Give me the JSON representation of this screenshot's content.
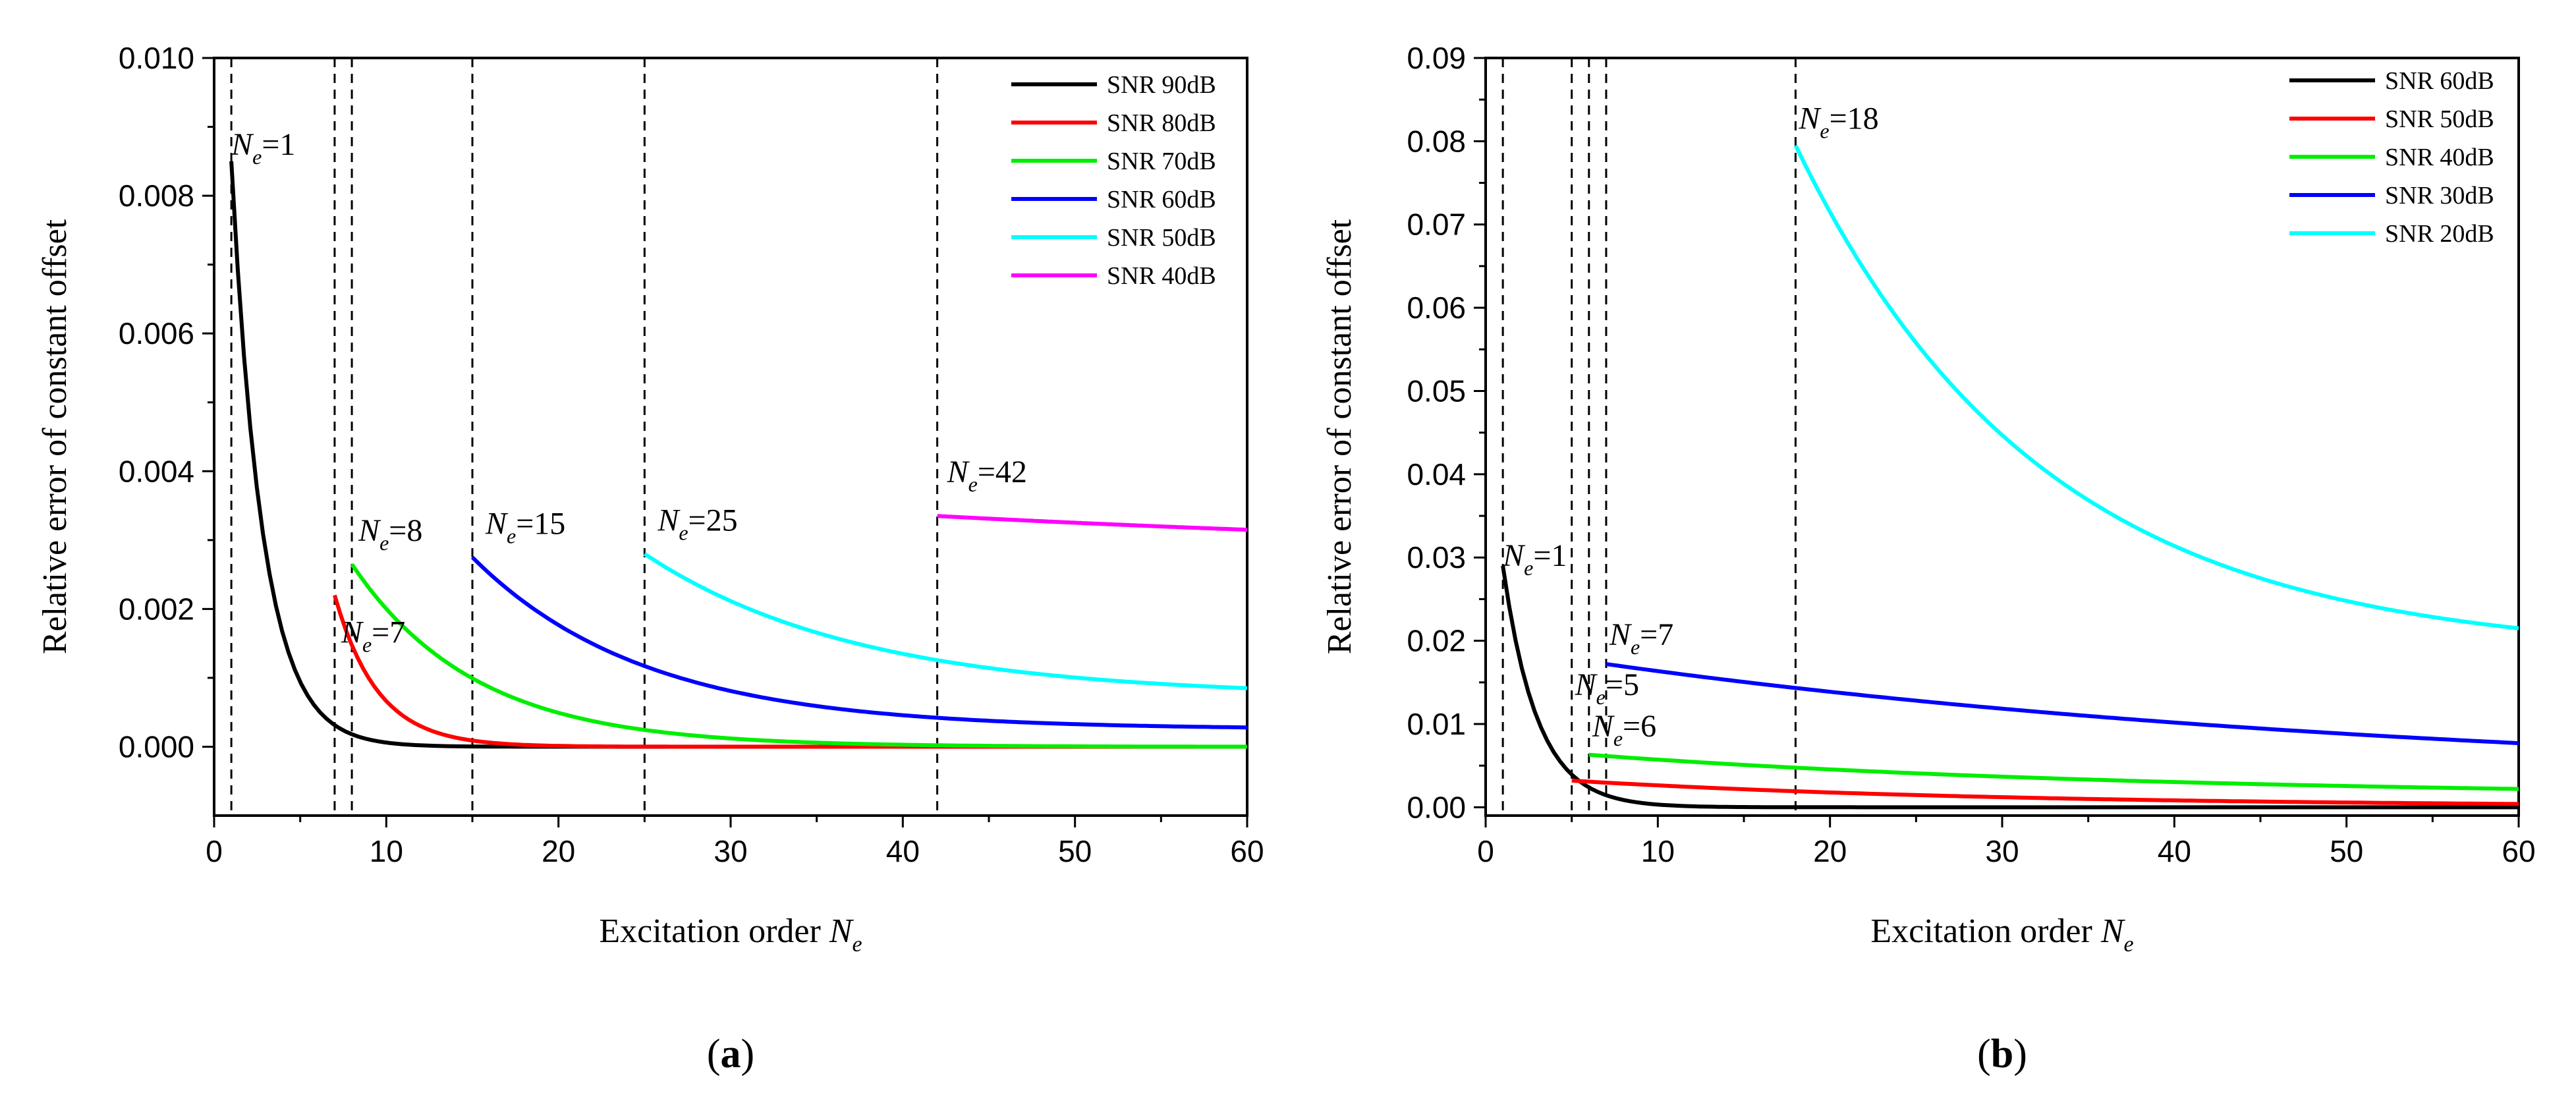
{
  "chart_data": [
    {
      "type": "line",
      "panel_label": "a",
      "xlabel": "Excitation order",
      "xlabel_var": "N",
      "xlabel_sub": "e",
      "ylabel": "Relative error of constant offset",
      "xlim": [
        0,
        60
      ],
      "ylim": [
        -0.001,
        0.01
      ],
      "xticks": [
        0,
        10,
        20,
        30,
        40,
        50,
        60
      ],
      "yticks": [
        0.0,
        0.002,
        0.004,
        0.006,
        0.008,
        0.01
      ],
      "ytick_decimals": 3,
      "legend_position": "top-right",
      "vlines": [
        1,
        7,
        8,
        15,
        25,
        42
      ],
      "series": [
        {
          "name": "SNR 90dB",
          "color": "#000000",
          "start": 1,
          "end": 60,
          "y_start": 0.0085,
          "y_end": 0.0,
          "decay": 0.55
        },
        {
          "name": "SNR 80dB",
          "color": "#ff0000",
          "start": 7,
          "end": 60,
          "y_start": 0.0022,
          "y_end": 0.0,
          "decay": 0.4
        },
        {
          "name": "SNR 70dB",
          "color": "#00ee00",
          "start": 8,
          "end": 60,
          "y_start": 0.00265,
          "y_end": 0.0,
          "decay": 0.14
        },
        {
          "name": "SNR 60dB",
          "color": "#0000ff",
          "start": 15,
          "end": 60,
          "y_start": 0.00275,
          "y_end": 0.00028,
          "decay": 0.1
        },
        {
          "name": "SNR 50dB",
          "color": "#00ffff",
          "start": 25,
          "end": 60,
          "y_start": 0.0028,
          "y_end": 0.00085,
          "decay": 0.08
        },
        {
          "name": "SNR 40dB",
          "color": "#ff00ff",
          "start": 42,
          "end": 60,
          "y_start": 0.00335,
          "y_end": 0.00315,
          "decay": 0.02
        }
      ],
      "annotations": [
        {
          "sym": "N",
          "sub": "e",
          "text": "=1",
          "x": 1,
          "y": 0.0085,
          "dx": 0,
          "dy": -10
        },
        {
          "sym": "N",
          "sub": "e",
          "text": "=7",
          "x": 7,
          "y": 0.0018,
          "dx": 10,
          "dy": 30
        },
        {
          "sym": "N",
          "sub": "e",
          "text": "=8",
          "x": 8,
          "y": 0.0027,
          "dx": 10,
          "dy": -30
        },
        {
          "sym": "N",
          "sub": "e",
          "text": "=15",
          "x": 15,
          "y": 0.0028,
          "dx": 20,
          "dy": -30
        },
        {
          "sym": "N",
          "sub": "e",
          "text": "=25",
          "x": 25,
          "y": 0.0029,
          "dx": 20,
          "dy": -25
        },
        {
          "sym": "N",
          "sub": "e",
          "text": "=42",
          "x": 42,
          "y": 0.0036,
          "dx": 15,
          "dy": -25
        }
      ]
    },
    {
      "type": "line",
      "panel_label": "b",
      "xlabel": "Excitation order",
      "xlabel_var": "N",
      "xlabel_sub": "e",
      "ylabel": "Relative error of constant offset",
      "xlim": [
        0,
        60
      ],
      "ylim": [
        -0.001,
        0.09
      ],
      "xticks": [
        0,
        10,
        20,
        30,
        40,
        50,
        60
      ],
      "yticks": [
        0.0,
        0.01,
        0.02,
        0.03,
        0.04,
        0.05,
        0.06,
        0.07,
        0.08,
        0.09
      ],
      "ytick_decimals": 2,
      "legend_position": "top-right",
      "vlines": [
        1,
        5,
        6,
        7,
        18
      ],
      "series": [
        {
          "name": "SNR 60dB",
          "color": "#000000",
          "start": 1,
          "end": 60,
          "y_start": 0.029,
          "y_end": 0.0,
          "decay": 0.5
        },
        {
          "name": "SNR 50dB",
          "color": "#ff0000",
          "start": 5,
          "end": 60,
          "y_start": 0.0032,
          "y_end": 0.0004,
          "decay": 0.04
        },
        {
          "name": "SNR 40dB",
          "color": "#00ee00",
          "start": 6,
          "end": 60,
          "y_start": 0.0063,
          "y_end": 0.0022,
          "decay": 0.03
        },
        {
          "name": "SNR 30dB",
          "color": "#0000ff",
          "start": 7,
          "end": 60,
          "y_start": 0.0172,
          "y_end": 0.0077,
          "decay": 0.02
        },
        {
          "name": "SNR 20dB",
          "color": "#00ffff",
          "start": 18,
          "end": 60,
          "y_start": 0.0795,
          "y_end": 0.0215,
          "decay": 0.07
        }
      ],
      "annotations": [
        {
          "sym": "N",
          "sub": "e",
          "text": "=1",
          "x": 1,
          "y": 0.029,
          "dx": 0,
          "dy": 0
        },
        {
          "sym": "N",
          "sub": "e",
          "text": "=5",
          "x": 5,
          "y": 0.0135,
          "dx": 5,
          "dy": 0
        },
        {
          "sym": "N",
          "sub": "e",
          "text": "=6",
          "x": 6,
          "y": 0.0085,
          "dx": 5,
          "dy": 0
        },
        {
          "sym": "N",
          "sub": "e",
          "text": "=7",
          "x": 7,
          "y": 0.0195,
          "dx": 5,
          "dy": 0
        },
        {
          "sym": "N",
          "sub": "e",
          "text": "=18",
          "x": 18,
          "y": 0.0815,
          "dx": 5,
          "dy": 0
        }
      ]
    }
  ]
}
